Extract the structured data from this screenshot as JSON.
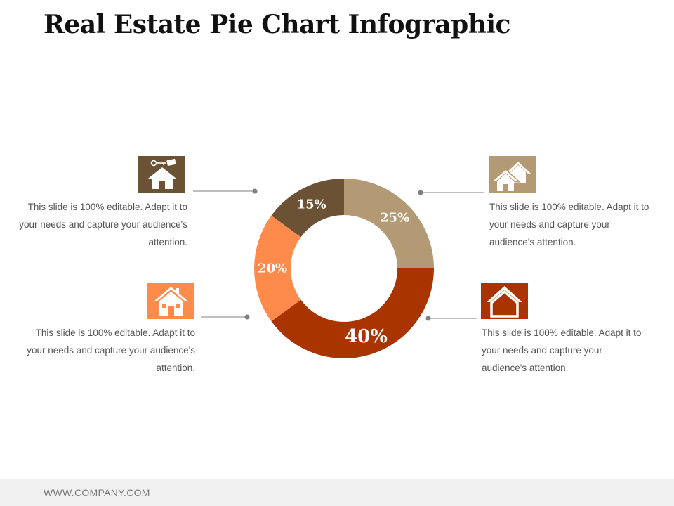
{
  "page": {
    "title": "Real Estate Pie Chart Infographic",
    "footer": "WWW.COMPANY.COM"
  },
  "chart_data": {
    "type": "pie",
    "style": "donut",
    "title": "",
    "slices": [
      {
        "value": 25,
        "label": "25%",
        "color": "#b39a74"
      },
      {
        "value": 40,
        "label": "40%",
        "color": "#a93400"
      },
      {
        "value": 20,
        "label": "20%",
        "color": "#fe8a4c"
      },
      {
        "value": 15,
        "label": "15%",
        "color": "#6b5235"
      }
    ]
  },
  "cards": [
    {
      "icon": "house-key-icon",
      "color": "#6b5235",
      "text": "This slide is 100% editable. Adapt it to your needs and capture your audience's attention."
    },
    {
      "icon": "house-icon",
      "color": "#fe8a4c",
      "text": "This slide is 100% editable. Adapt it to your needs and capture your audience's attention."
    },
    {
      "icon": "two-houses-icon",
      "color": "#b39a74",
      "text": "This slide is 100% editable. Adapt it to your needs and capture your audience's attention."
    },
    {
      "icon": "house-outline-icon",
      "color": "#a93400",
      "text": "This slide is 100% editable. Adapt it to your needs and capture your audience's attention."
    }
  ]
}
